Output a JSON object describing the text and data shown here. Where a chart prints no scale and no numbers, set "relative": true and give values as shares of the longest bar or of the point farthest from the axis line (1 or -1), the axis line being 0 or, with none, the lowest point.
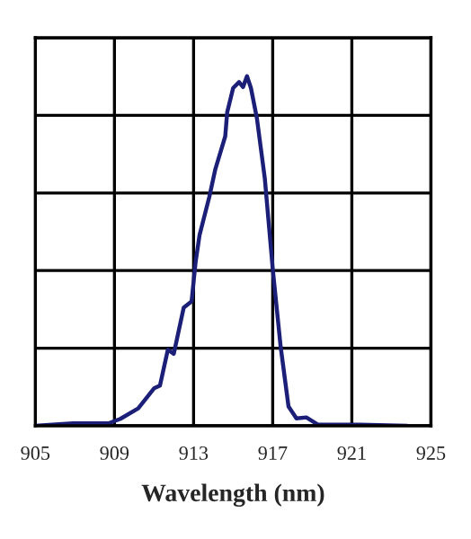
{
  "chart_data": {
    "type": "line",
    "relative": true,
    "xlabel": "Wavelength (nm)",
    "x": [
      905,
      906.9,
      908.7,
      909.3,
      910.2,
      911.0,
      911.3,
      911.7,
      912.0,
      912.5,
      912.9,
      913.1,
      913.3,
      913.8,
      914.1,
      914.6,
      914.7,
      915.0,
      915.3,
      915.5,
      915.7,
      915.9,
      916.2,
      916.6,
      917.0,
      917.4,
      917.8,
      918.2,
      918.7,
      919.3,
      921.4,
      923.8
    ],
    "series": [
      {
        "color": "#1c1f78",
        "values": [
          0,
          0.007,
          0.007,
          0.02,
          0.05,
          0.107,
          0.115,
          0.218,
          0.206,
          0.338,
          0.356,
          0.467,
          0.545,
          0.656,
          0.734,
          0.828,
          0.897,
          0.966,
          0.983,
          0.969,
          1.0,
          0.966,
          0.88,
          0.708,
          0.45,
          0.227,
          0.055,
          0.021,
          0.024,
          0.003,
          0.003,
          0
        ]
      }
    ],
    "xlim": [
      905,
      925
    ],
    "xticks": [
      905,
      909,
      913,
      917,
      921,
      925
    ],
    "grid": true
  }
}
